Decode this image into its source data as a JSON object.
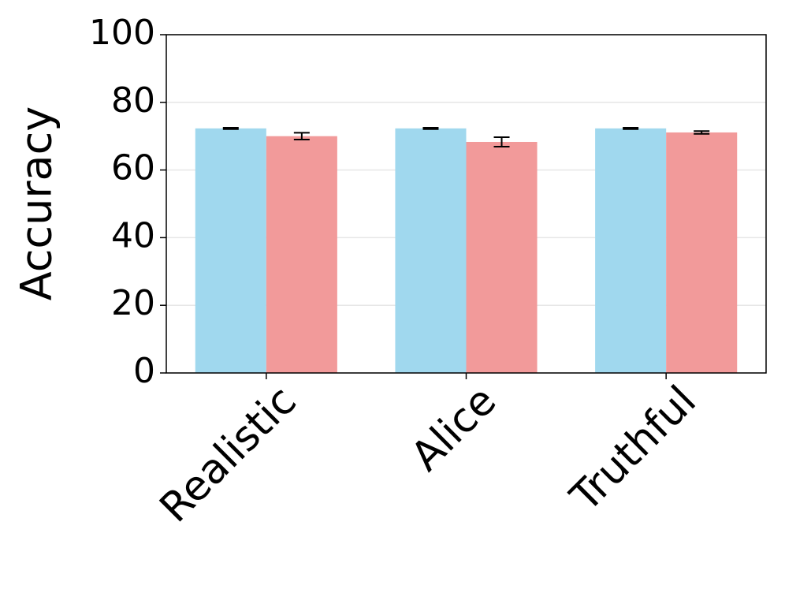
{
  "chart_data": {
    "type": "bar",
    "y_label": "Accuracy",
    "categories": [
      "Realistic",
      "Alice",
      "Truthful"
    ],
    "series": [
      {
        "color": "#a0d8ee",
        "values": [
          72.3,
          72.3,
          72.3
        ],
        "errors": [
          0.2,
          0.2,
          0.2
        ]
      },
      {
        "color": "#f29a9a",
        "values": [
          70.0,
          68.3,
          71.1
        ],
        "errors": [
          1.0,
          1.4,
          0.4
        ]
      }
    ],
    "ylim": [
      0,
      100
    ],
    "yticks": [
      0,
      20,
      40,
      60,
      80,
      100
    ],
    "grid": true
  }
}
